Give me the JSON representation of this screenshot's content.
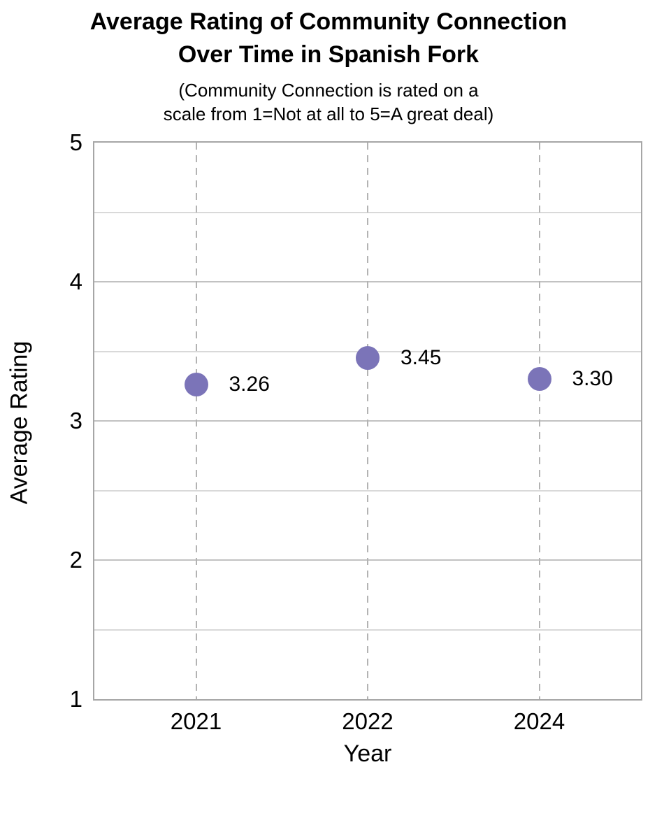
{
  "chart_data": {
    "type": "scatter",
    "title_line1": "Average Rating of Community Connection",
    "title_line2": "Over Time in Spanish Fork",
    "subtitle_line1": "(Community Connection is rated on a",
    "subtitle_line2": "scale from 1=Not at all to 5=A great deal)",
    "xlabel": "Year",
    "ylabel": "Average Rating",
    "categories": [
      "2021",
      "2022",
      "2024"
    ],
    "values": [
      3.26,
      3.45,
      3.3
    ],
    "data_labels": [
      "3.26",
      "3.45",
      "3.30"
    ],
    "ylim": [
      1,
      5
    ],
    "yticks": [
      5,
      4,
      3,
      2,
      1
    ],
    "minor_gridlines": [
      4.5,
      3.5,
      2.5,
      1.5
    ],
    "legend_position": "none",
    "grid": "horizontal solid lines every 0.5; vertical dashed line at each category",
    "colors": {
      "point": "#7b74b8",
      "plot_border": "#a6a6a6",
      "major_grid": "#c2c2c2",
      "minor_grid": "#d9d9d9",
      "dashed_grid": "#b3b3b3",
      "text": "#000000"
    }
  }
}
